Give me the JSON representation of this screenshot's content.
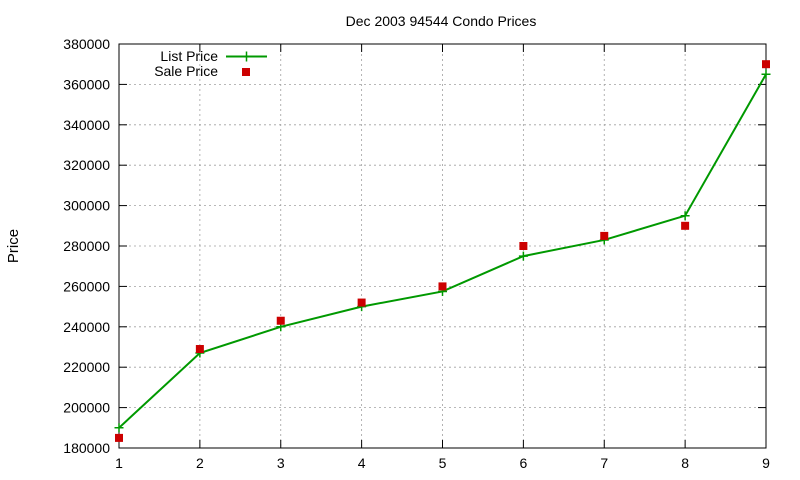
{
  "chart_data": {
    "type": "line",
    "title": "Dec 2003 94544 Condo Prices",
    "xlabel": "",
    "ylabel": "Price",
    "x": [
      1,
      2,
      3,
      4,
      5,
      6,
      7,
      8,
      9
    ],
    "xlim": [
      1,
      9
    ],
    "ylim": [
      180000,
      380000
    ],
    "x_ticks": [
      "1",
      "2",
      "3",
      "4",
      "5",
      "6",
      "7",
      "8",
      "9"
    ],
    "y_ticks": [
      "180000",
      "200000",
      "220000",
      "240000",
      "260000",
      "280000",
      "300000",
      "320000",
      "340000",
      "360000",
      "380000"
    ],
    "grid": true,
    "legend_position": "top-left",
    "series": [
      {
        "name": "List Price",
        "style": "line with plus markers",
        "color": "#009900",
        "values": [
          190000,
          227000,
          240000,
          250000,
          257500,
          275000,
          283000,
          295000,
          365000
        ]
      },
      {
        "name": "Sale Price",
        "style": "square points",
        "color": "#cc0000",
        "values": [
          185000,
          229000,
          243000,
          252000,
          260000,
          280000,
          285000,
          290000,
          370000
        ]
      }
    ]
  }
}
